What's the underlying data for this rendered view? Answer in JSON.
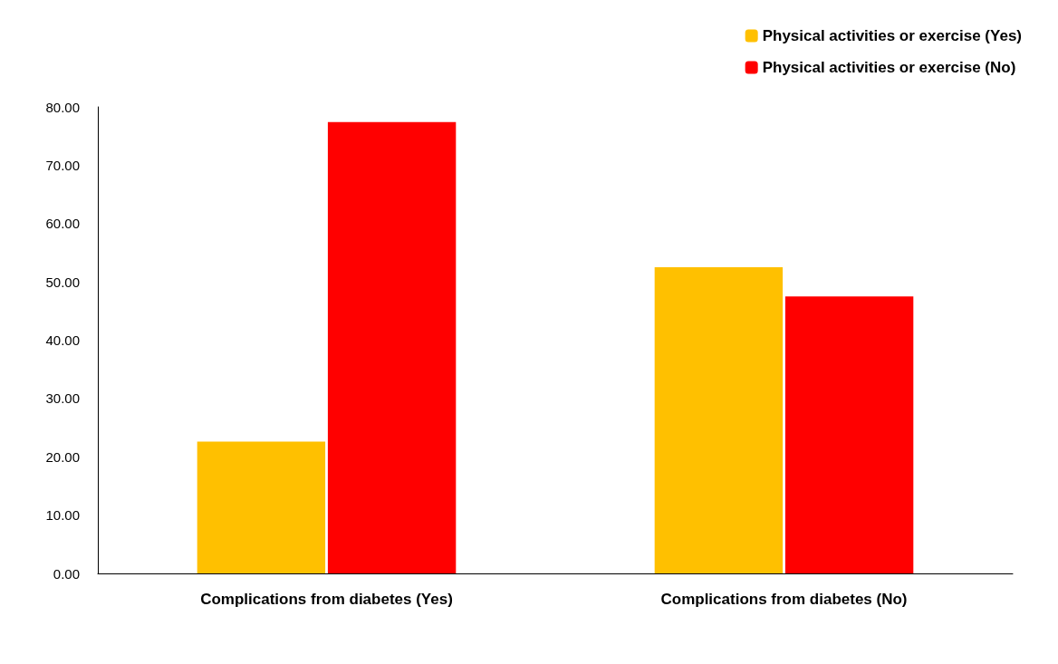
{
  "chart_data": {
    "type": "bar",
    "categories": [
      "Complications from diabetes (Yes)",
      "Complications from diabetes (No)"
    ],
    "series": [
      {
        "name": "Physical activities or exercise (Yes)",
        "color": "#ffc000",
        "values": [
          22.6,
          52.5
        ]
      },
      {
        "name": "Physical activities or exercise (No)",
        "color": "#ff0000",
        "values": [
          77.4,
          47.5
        ]
      }
    ],
    "ylim": [
      0,
      80
    ],
    "yticks": [
      {
        "value": 0,
        "label": "0.00"
      },
      {
        "value": 10,
        "label": "10.00"
      },
      {
        "value": 20,
        "label": "20.00"
      },
      {
        "value": 30,
        "label": "30.00"
      },
      {
        "value": 40,
        "label": "40.00"
      },
      {
        "value": 50,
        "label": "50.00"
      },
      {
        "value": 60,
        "label": "60.00"
      },
      {
        "value": 70,
        "label": "70.00"
      },
      {
        "value": 80,
        "label": "80.00"
      }
    ],
    "grid": false,
    "legend": "top right"
  }
}
